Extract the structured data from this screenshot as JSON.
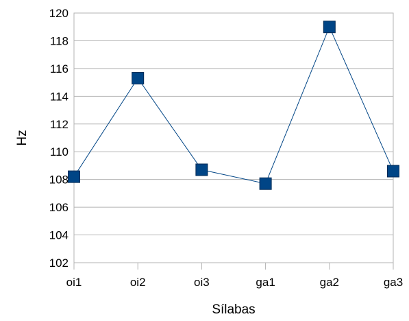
{
  "chart_data": {
    "type": "line",
    "title": "",
    "xlabel": "Sílabas",
    "ylabel": "Hz",
    "categories": [
      "oi1",
      "oi2",
      "oi3",
      "ga1",
      "ga2",
      "ga3"
    ],
    "series": [
      {
        "values": [
          108.2,
          115.3,
          108.7,
          107.7,
          119.0,
          108.6
        ],
        "color": "#004586",
        "marker": "square"
      }
    ],
    "ylim": [
      102,
      120
    ],
    "yticks": [
      102,
      104,
      106,
      108,
      110,
      112,
      114,
      116,
      118,
      120
    ],
    "grid": true,
    "legend": "none"
  }
}
